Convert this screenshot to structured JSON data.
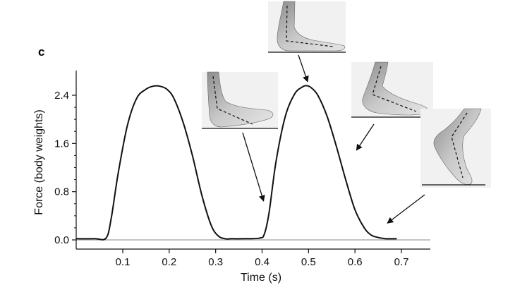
{
  "panel_label": "c",
  "chart_data": {
    "type": "line",
    "title": "",
    "xlabel": "Time (s)",
    "ylabel": "Force (body weights)",
    "xlim": [
      0.0,
      0.76
    ],
    "ylim": [
      0.0,
      2.6
    ],
    "xticks": [
      "0.1",
      "0.2",
      "0.3",
      "0.4",
      "0.5",
      "0.6",
      "0.7"
    ],
    "yticks": [
      "0.0",
      "0.8",
      "1.6",
      "2.4"
    ],
    "grid": false,
    "legend": "none",
    "series": [
      {
        "x": [
          0.0,
          0.04,
          0.064,
          0.075,
          0.09,
          0.11,
          0.13,
          0.15,
          0.165,
          0.18,
          0.195,
          0.21,
          0.23,
          0.25,
          0.27,
          0.29,
          0.305,
          0.32,
          0.335,
          0.36,
          0.395,
          0.405,
          0.415,
          0.43,
          0.45,
          0.47,
          0.485,
          0.495,
          0.505,
          0.52,
          0.54,
          0.56,
          0.58,
          0.6,
          0.62,
          0.635,
          0.65,
          0.665,
          0.69
        ],
        "y": [
          0.02,
          0.02,
          0.03,
          0.35,
          1.1,
          1.9,
          2.35,
          2.5,
          2.55,
          2.55,
          2.5,
          2.35,
          1.95,
          1.4,
          0.75,
          0.25,
          0.07,
          0.02,
          0.02,
          0.02,
          0.03,
          0.1,
          0.45,
          1.3,
          2.05,
          2.42,
          2.53,
          2.56,
          2.53,
          2.4,
          2.05,
          1.55,
          1.0,
          0.5,
          0.2,
          0.08,
          0.04,
          0.02,
          0.02
        ]
      }
    ],
    "annotations": [
      {
        "target_x": 0.405,
        "target_y": 0.6,
        "image": "foot-heel-strike"
      },
      {
        "target_x": 0.5,
        "target_y": 2.58,
        "image": "foot-flat-loading"
      },
      {
        "target_x": 0.6,
        "target_y": 1.45,
        "image": "foot-heel-rise"
      },
      {
        "target_x": 0.665,
        "target_y": 0.25,
        "image": "foot-toe-off"
      }
    ]
  }
}
